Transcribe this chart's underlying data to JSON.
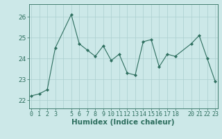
{
  "x": [
    0,
    1,
    2,
    3,
    5,
    6,
    7,
    8,
    9,
    10,
    11,
    12,
    13,
    14,
    15,
    16,
    17,
    18,
    20,
    21,
    22,
    23
  ],
  "y": [
    22.2,
    22.3,
    22.5,
    24.5,
    26.1,
    24.7,
    24.4,
    24.1,
    24.6,
    23.9,
    24.2,
    23.3,
    23.2,
    24.8,
    24.9,
    23.6,
    24.2,
    24.1,
    24.7,
    25.1,
    24.0,
    22.9
  ],
  "xlabel": "Humidex (Indice chaleur)",
  "xtick_labels": [
    "0",
    "1",
    "2",
    "3",
    "5",
    "6",
    "7",
    "8",
    "9",
    "10",
    "11",
    "12",
    "13",
    "14",
    "15",
    "16",
    "17",
    "18",
    "20",
    "21",
    "22",
    "23"
  ],
  "xtick_positions": [
    0,
    1,
    2,
    3,
    5,
    6,
    7,
    8,
    9,
    10,
    11,
    12,
    13,
    14,
    15,
    16,
    17,
    18,
    20,
    21,
    22,
    23
  ],
  "grid_x_positions": [
    0,
    1,
    2,
    3,
    4,
    5,
    6,
    7,
    8,
    9,
    10,
    11,
    12,
    13,
    14,
    15,
    16,
    17,
    18,
    19,
    20,
    21,
    22,
    23
  ],
  "yticks": [
    22,
    23,
    24,
    25,
    26
  ],
  "ylim": [
    21.6,
    26.6
  ],
  "xlim": [
    -0.3,
    23.3
  ],
  "line_color": "#2d6e5e",
  "marker_color": "#2d6e5e",
  "bg_color": "#cce8e8",
  "grid_color": "#aacfcf",
  "xlabel_fontsize": 7.5,
  "tick_fontsize": 6.0,
  "ytick_fontsize": 6.5
}
